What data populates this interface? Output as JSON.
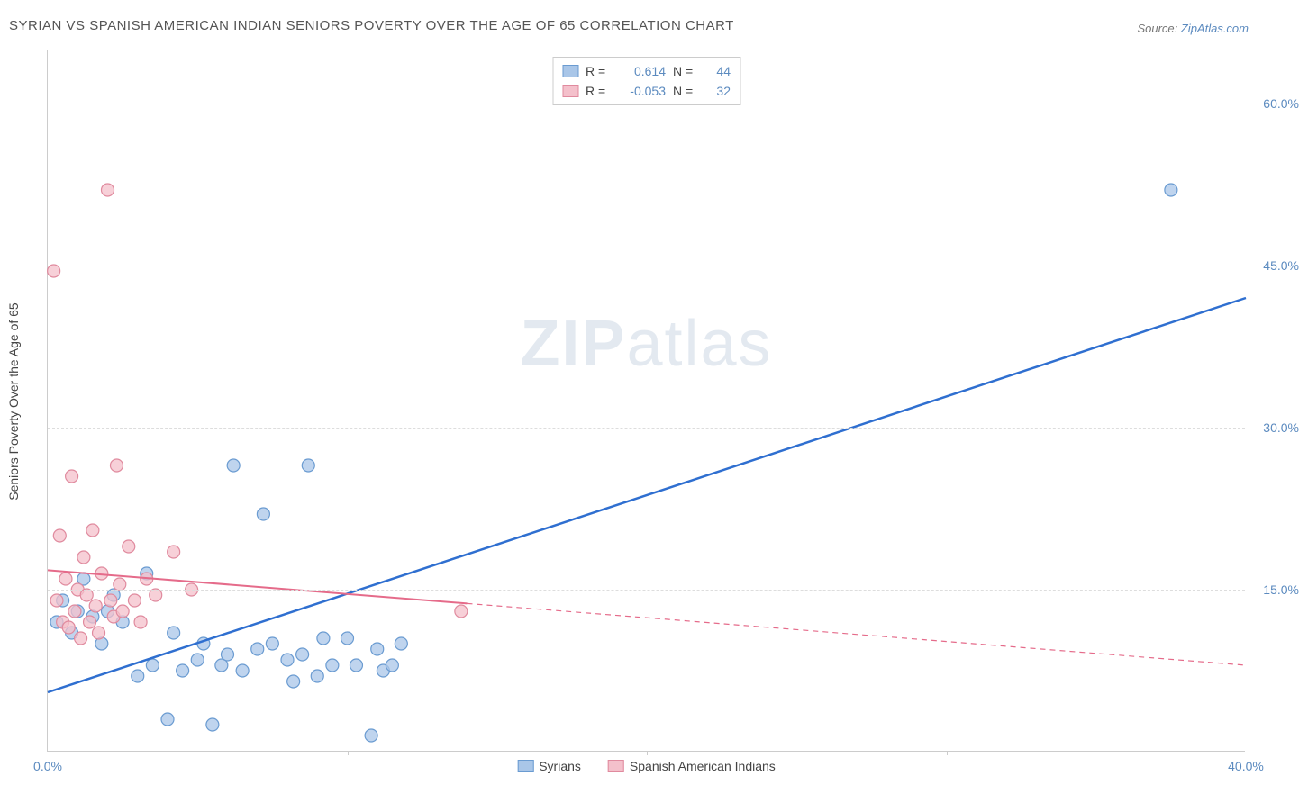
{
  "title": "SYRIAN VS SPANISH AMERICAN INDIAN SENIORS POVERTY OVER THE AGE OF 65 CORRELATION CHART",
  "source_prefix": "Source: ",
  "source_link": "ZipAtlas.com",
  "ylabel": "Seniors Poverty Over the Age of 65",
  "watermark_bold": "ZIP",
  "watermark_light": "atlas",
  "chart": {
    "type": "scatter",
    "xlim": [
      0,
      40
    ],
    "ylim": [
      0,
      65
    ],
    "xticks": [
      0,
      10,
      20,
      30,
      40
    ],
    "xtick_labels": [
      "0.0%",
      "",
      "",
      "",
      "40.0%"
    ],
    "xtick_minor_marks": [
      10,
      20,
      30
    ],
    "yticks": [
      15,
      30,
      45,
      60
    ],
    "ytick_labels": [
      "15.0%",
      "30.0%",
      "45.0%",
      "60.0%"
    ],
    "background_color": "#ffffff",
    "grid_color": "#dddddd",
    "series": [
      {
        "name": "Syrians",
        "label": "Syrians",
        "marker_fill": "#a9c6e8",
        "marker_stroke": "#6a9bd1",
        "marker_radius": 7,
        "marker_opacity": 0.75,
        "line_color": "#2f6fd0",
        "line_width": 2.5,
        "R": "0.614",
        "N": "44",
        "trend": {
          "x1": 0,
          "y1": 5.5,
          "x2": 40,
          "y2": 42,
          "solid_until_x": 40
        },
        "points": [
          [
            0.3,
            12
          ],
          [
            0.5,
            14
          ],
          [
            0.8,
            11
          ],
          [
            1,
            13
          ],
          [
            1.2,
            16
          ],
          [
            1.5,
            12.5
          ],
          [
            1.8,
            10
          ],
          [
            2,
            13
          ],
          [
            2.2,
            14.5
          ],
          [
            2.5,
            12
          ],
          [
            3,
            7
          ],
          [
            3.3,
            16.5
          ],
          [
            3.5,
            8
          ],
          [
            4,
            3
          ],
          [
            4.2,
            11
          ],
          [
            4.5,
            7.5
          ],
          [
            5,
            8.5
          ],
          [
            5.2,
            10
          ],
          [
            5.5,
            2.5
          ],
          [
            5.8,
            8
          ],
          [
            6,
            9
          ],
          [
            6.2,
            26.5
          ],
          [
            6.5,
            7.5
          ],
          [
            7,
            9.5
          ],
          [
            7.2,
            22
          ],
          [
            7.5,
            10
          ],
          [
            8,
            8.5
          ],
          [
            8.2,
            6.5
          ],
          [
            8.5,
            9
          ],
          [
            8.7,
            26.5
          ],
          [
            9,
            7
          ],
          [
            9.2,
            10.5
          ],
          [
            9.5,
            8
          ],
          [
            10,
            10.5
          ],
          [
            10.3,
            8
          ],
          [
            10.8,
            1.5
          ],
          [
            11,
            9.5
          ],
          [
            11.2,
            7.5
          ],
          [
            11.5,
            8
          ],
          [
            11.8,
            10
          ],
          [
            37.5,
            52
          ]
        ]
      },
      {
        "name": "Spanish American Indians",
        "label": "Spanish American Indians",
        "marker_fill": "#f4c0cb",
        "marker_stroke": "#e08a9e",
        "marker_radius": 7,
        "marker_opacity": 0.75,
        "line_color": "#e56b8a",
        "line_width": 2,
        "R": "-0.053",
        "N": "32",
        "trend": {
          "x1": 0,
          "y1": 16.8,
          "x2": 40,
          "y2": 8,
          "solid_until_x": 14
        },
        "points": [
          [
            0.2,
            44.5
          ],
          [
            0.3,
            14
          ],
          [
            0.4,
            20
          ],
          [
            0.5,
            12
          ],
          [
            0.6,
            16
          ],
          [
            0.7,
            11.5
          ],
          [
            0.8,
            25.5
          ],
          [
            0.9,
            13
          ],
          [
            1,
            15
          ],
          [
            1.1,
            10.5
          ],
          [
            1.2,
            18
          ],
          [
            1.3,
            14.5
          ],
          [
            1.4,
            12
          ],
          [
            1.5,
            20.5
          ],
          [
            1.6,
            13.5
          ],
          [
            1.7,
            11
          ],
          [
            1.8,
            16.5
          ],
          [
            2,
            52
          ],
          [
            2.1,
            14
          ],
          [
            2.2,
            12.5
          ],
          [
            2.3,
            26.5
          ],
          [
            2.4,
            15.5
          ],
          [
            2.5,
            13
          ],
          [
            2.7,
            19
          ],
          [
            2.9,
            14
          ],
          [
            3.1,
            12
          ],
          [
            3.3,
            16
          ],
          [
            3.6,
            14.5
          ],
          [
            4.2,
            18.5
          ],
          [
            4.8,
            15
          ],
          [
            13.8,
            13
          ]
        ]
      }
    ]
  },
  "legend_top": {
    "rows": [
      {
        "swatch_fill": "#a9c6e8",
        "swatch_stroke": "#6a9bd1",
        "R_label": "R =",
        "R_val": "0.614",
        "N_label": "N =",
        "N_val": "44"
      },
      {
        "swatch_fill": "#f4c0cb",
        "swatch_stroke": "#e08a9e",
        "R_label": "R =",
        "R_val": "-0.053",
        "N_label": "N =",
        "N_val": "32"
      }
    ]
  },
  "legend_bottom": [
    {
      "swatch_fill": "#a9c6e8",
      "swatch_stroke": "#6a9bd1",
      "label": "Syrians"
    },
    {
      "swatch_fill": "#f4c0cb",
      "swatch_stroke": "#e08a9e",
      "label": "Spanish American Indians"
    }
  ]
}
